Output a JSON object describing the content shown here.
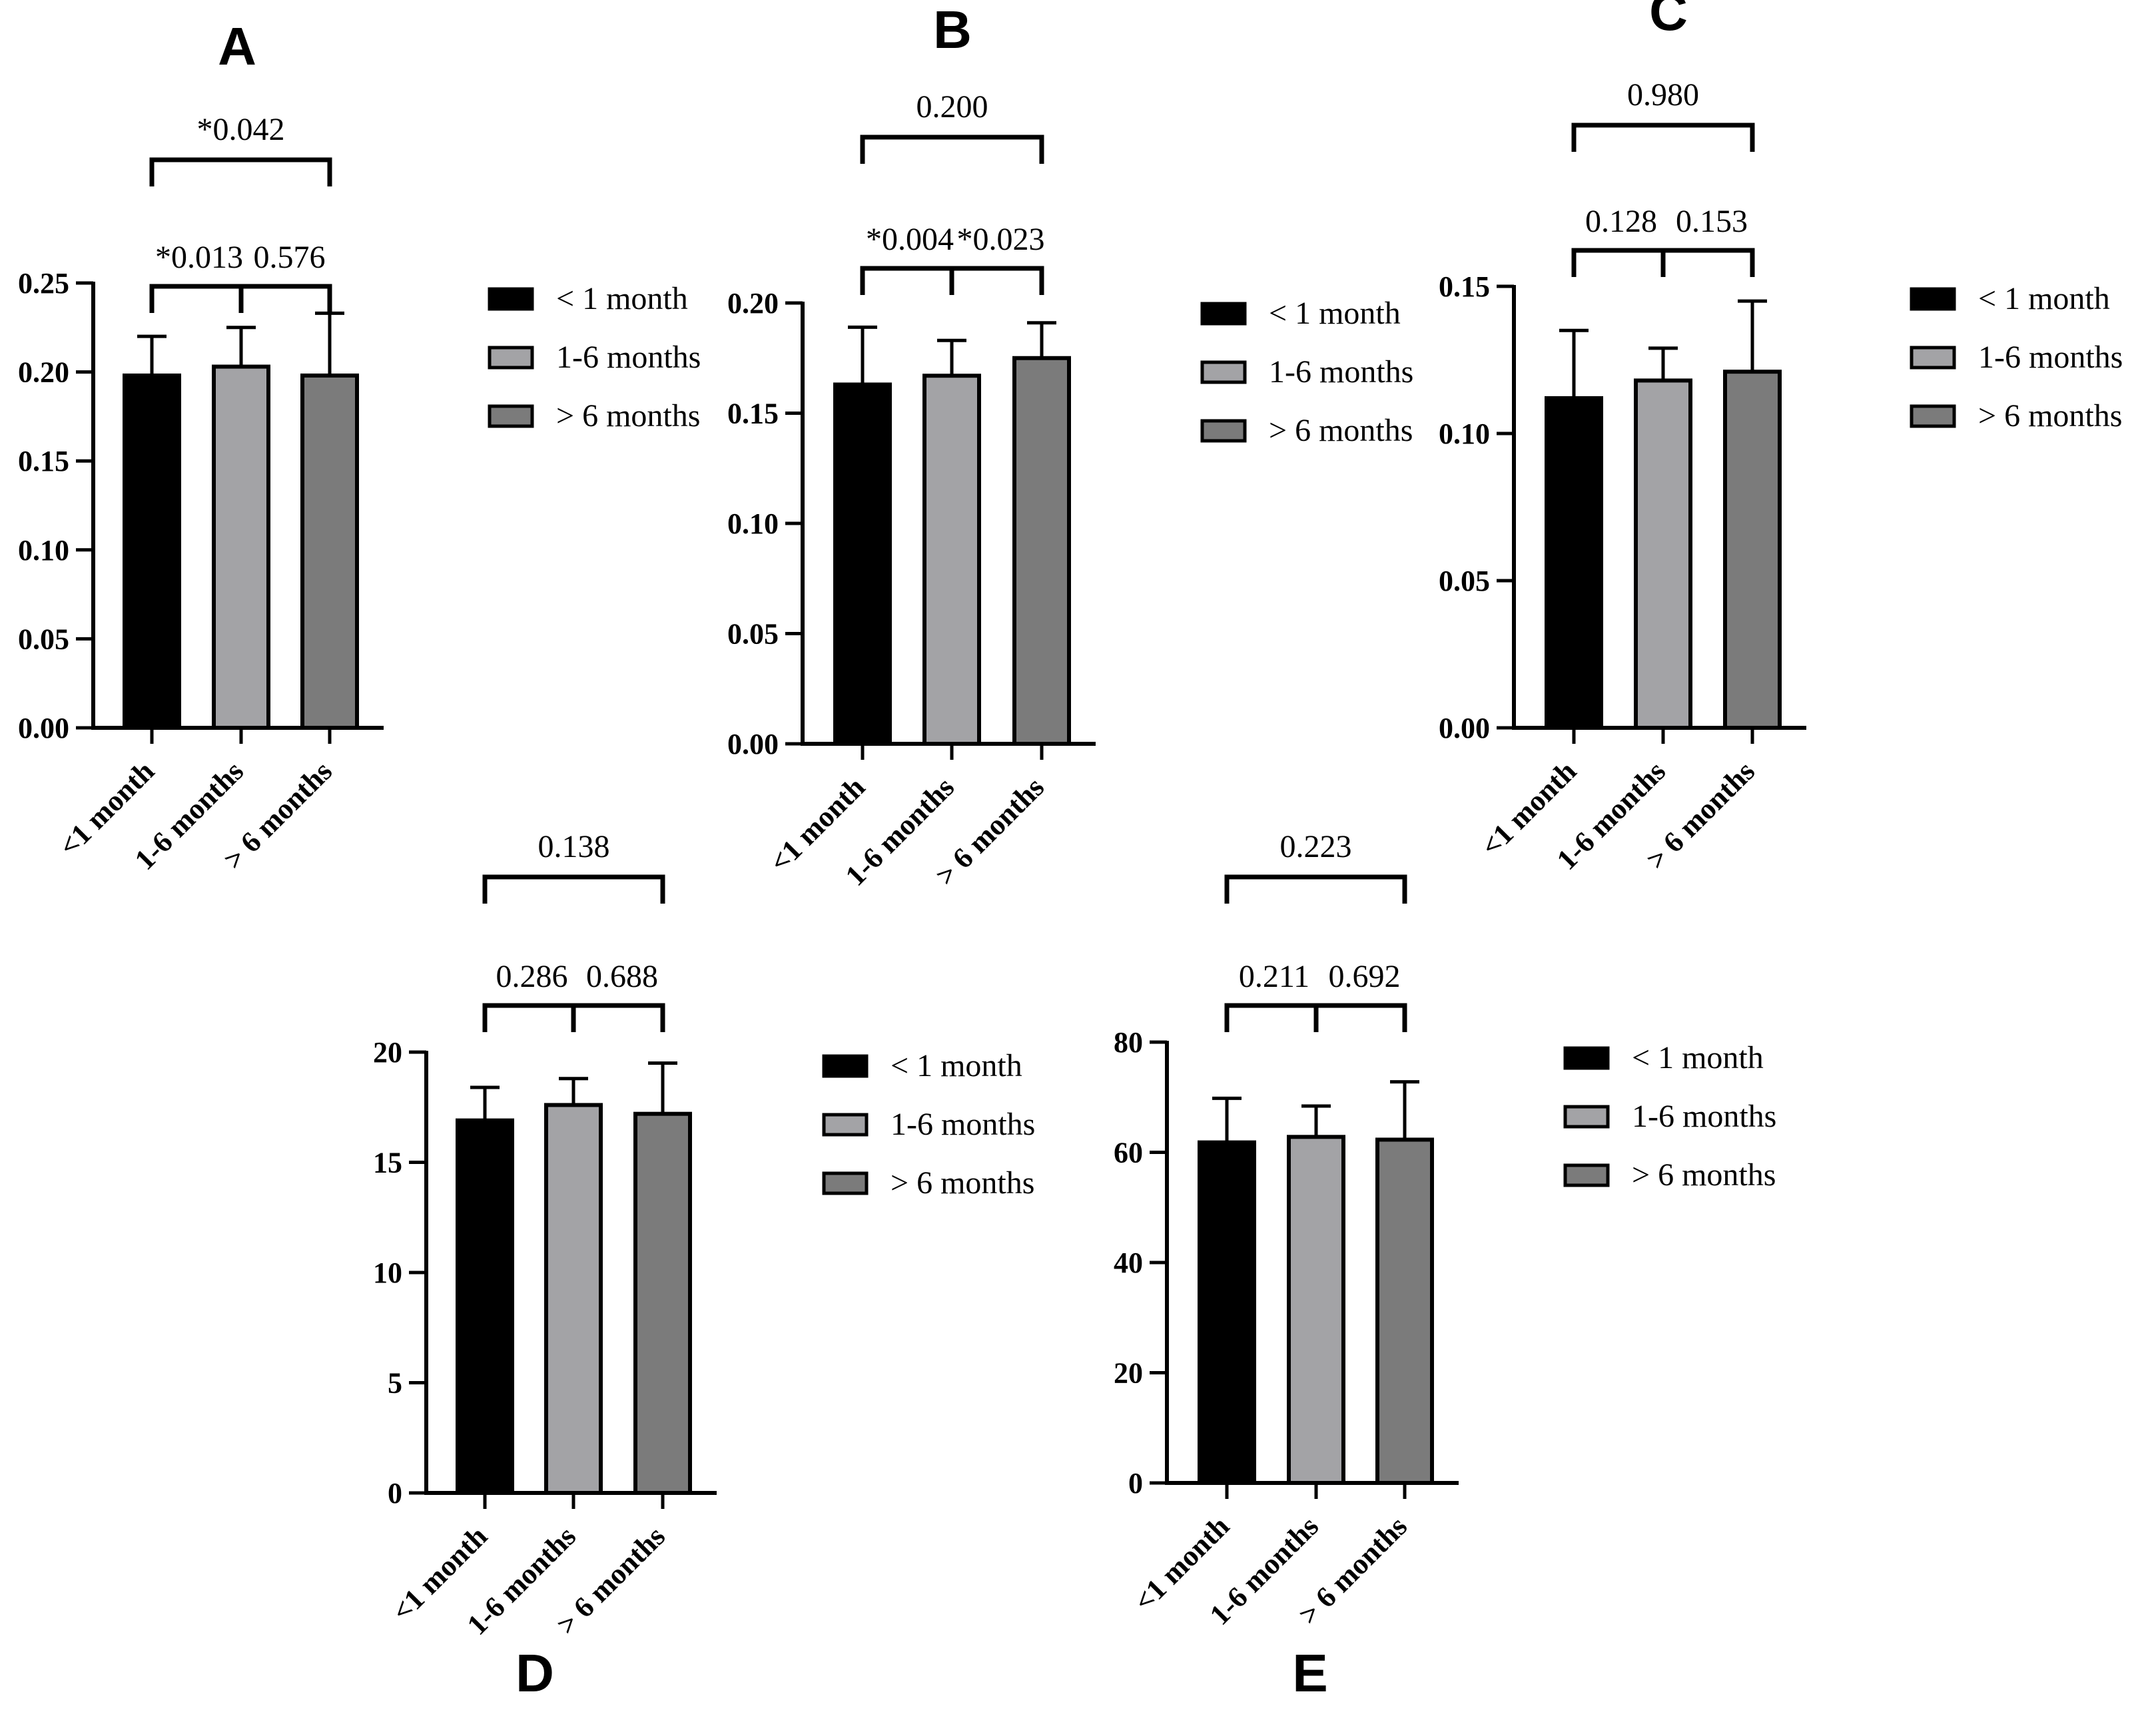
{
  "chart_data": [
    {
      "type": "bar",
      "panel": "A",
      "categories": [
        "<1 month",
        "1-6 months",
        "> 6 months"
      ],
      "values": [
        0.198,
        0.203,
        0.198
      ],
      "errors": [
        0.022,
        0.022,
        0.035
      ],
      "ylim": [
        0,
        0.25
      ],
      "yticks": [
        "0.00",
        "0.05",
        "0.10",
        "0.15",
        "0.20",
        "0.25"
      ],
      "comparisons": {
        "outer": "*0.042",
        "pair_left": "*0.013",
        "pair_right": "0.576"
      },
      "legend": [
        "< 1 month",
        "1-6 months",
        "> 6 months"
      ]
    },
    {
      "type": "bar",
      "panel": "B",
      "categories": [
        "<1 month",
        "1-6 months",
        "> 6 months"
      ],
      "values": [
        0.163,
        0.167,
        0.175
      ],
      "errors": [
        0.026,
        0.016,
        0.016
      ],
      "ylim": [
        0,
        0.2
      ],
      "yticks": [
        "0.00",
        "0.05",
        "0.10",
        "0.15",
        "0.20"
      ],
      "comparisons": {
        "outer": "0.200",
        "pair_left": "*0.004",
        "pair_right": "*0.023"
      },
      "legend": [
        "< 1 month",
        "1-6 months",
        "> 6 months"
      ]
    },
    {
      "type": "bar",
      "panel": "C",
      "categories": [
        "<1 month",
        "1-6 months",
        "> 6 months"
      ],
      "values": [
        0.112,
        0.118,
        0.121
      ],
      "errors": [
        0.023,
        0.011,
        0.024
      ],
      "ylim": [
        0,
        0.15
      ],
      "yticks": [
        "0.00",
        "0.05",
        "0.10",
        "0.15"
      ],
      "comparisons": {
        "outer": "0.980",
        "pair_left": "0.128",
        "pair_right": "0.153"
      },
      "legend": [
        "< 1 month",
        "1-6 months",
        "> 6 months"
      ]
    },
    {
      "type": "bar",
      "panel": "D",
      "categories": [
        "<1 month",
        "1-6 months",
        "> 6 months"
      ],
      "values": [
        16.9,
        17.6,
        17.2
      ],
      "errors": [
        1.5,
        1.2,
        2.3
      ],
      "ylim": [
        0,
        20
      ],
      "yticks": [
        "0",
        "5",
        "10",
        "15",
        "20"
      ],
      "comparisons": {
        "outer": "0.138",
        "pair_left": "0.286",
        "pair_right": "0.688"
      },
      "legend": [
        "< 1 month",
        "1-6 months",
        "> 6 months"
      ]
    },
    {
      "type": "bar",
      "panel": "E",
      "categories": [
        "<1 month",
        "1-6 months",
        "> 6 months"
      ],
      "values": [
        61.8,
        62.8,
        62.3
      ],
      "errors": [
        8.0,
        5.6,
        10.5
      ],
      "ylim": [
        0,
        80
      ],
      "yticks": [
        "0",
        "20",
        "40",
        "60",
        "80"
      ],
      "comparisons": {
        "outer": "0.223",
        "pair_left": "0.211",
        "pair_right": "0.692"
      },
      "legend": [
        "< 1 month",
        "1-6 months",
        "> 6 months"
      ]
    }
  ],
  "colors": {
    "series": [
      "#000000",
      "#a3a3a6",
      "#7b7b7b"
    ],
    "axis": "#000000"
  }
}
